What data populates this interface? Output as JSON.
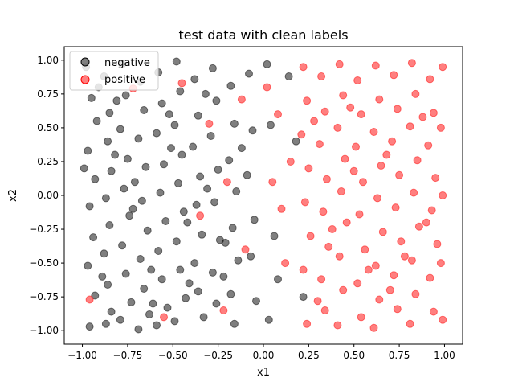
{
  "chart_data": {
    "type": "scatter",
    "title": "test data with clean labels",
    "xlabel": "x1",
    "ylabel": "x2",
    "xlim": [
      -1.1,
      1.1
    ],
    "ylim": [
      -1.1,
      1.1
    ],
    "xticks": [
      -1.0,
      -0.75,
      -0.5,
      -0.25,
      0.0,
      0.25,
      0.5,
      0.75,
      1.0
    ],
    "yticks": [
      -1.0,
      -0.75,
      -0.5,
      -0.25,
      0.0,
      0.25,
      0.5,
      0.75,
      1.0
    ],
    "xtick_labels": [
      "−1.00",
      "−0.75",
      "−0.50",
      "−0.25",
      "0.00",
      "0.25",
      "0.50",
      "0.75",
      "1.00"
    ],
    "ytick_labels": [
      "−1.00",
      "−0.75",
      "−0.50",
      "−0.25",
      "0.00",
      "0.25",
      "0.50",
      "0.75",
      "1.00"
    ],
    "grid": false,
    "legend_position": "top-left",
    "series": [
      {
        "name": "negative",
        "color": "#000000",
        "points": [
          [
            -0.98,
            0.95
          ],
          [
            -0.95,
            0.72
          ],
          [
            -0.92,
            0.55
          ],
          [
            -0.97,
            0.33
          ],
          [
            -0.93,
            0.12
          ],
          [
            -0.96,
            -0.08
          ],
          [
            -0.94,
            -0.31
          ],
          [
            -0.97,
            -0.52
          ],
          [
            -0.93,
            -0.74
          ],
          [
            -0.96,
            -0.97
          ],
          [
            -0.88,
            0.88
          ],
          [
            -0.85,
            0.61
          ],
          [
            -0.86,
            0.4
          ],
          [
            -0.84,
            0.18
          ],
          [
            -0.87,
            -0.02
          ],
          [
            -0.85,
            -0.22
          ],
          [
            -0.88,
            -0.43
          ],
          [
            -0.86,
            -0.66
          ],
          [
            -0.84,
            -0.86
          ],
          [
            -0.87,
            -0.95
          ],
          [
            -0.78,
            0.97
          ],
          [
            -0.76,
            0.74
          ],
          [
            -0.79,
            0.49
          ],
          [
            -0.75,
            0.27
          ],
          [
            -0.77,
            0.05
          ],
          [
            -0.74,
            -0.15
          ],
          [
            -0.78,
            -0.37
          ],
          [
            -0.76,
            -0.58
          ],
          [
            -0.73,
            -0.79
          ],
          [
            -0.79,
            -0.92
          ],
          [
            -0.68,
            0.84
          ],
          [
            -0.66,
            0.63
          ],
          [
            -0.69,
            0.42
          ],
          [
            -0.65,
            0.21
          ],
          [
            -0.67,
            -0.04
          ],
          [
            -0.64,
            -0.26
          ],
          [
            -0.68,
            -0.47
          ],
          [
            -0.66,
            -0.69
          ],
          [
            -0.63,
            -0.88
          ],
          [
            -0.69,
            -0.99
          ],
          [
            -0.58,
            0.91
          ],
          [
            -0.56,
            0.68
          ],
          [
            -0.59,
            0.46
          ],
          [
            -0.55,
            0.23
          ],
          [
            -0.57,
            0.02
          ],
          [
            -0.54,
            -0.19
          ],
          [
            -0.58,
            -0.41
          ],
          [
            -0.56,
            -0.62
          ],
          [
            -0.53,
            -0.83
          ],
          [
            -0.59,
            -0.96
          ],
          [
            -0.48,
            0.99
          ],
          [
            -0.46,
            0.77
          ],
          [
            -0.49,
            0.52
          ],
          [
            -0.45,
            0.3
          ],
          [
            -0.47,
            0.09
          ],
          [
            -0.44,
            -0.12
          ],
          [
            -0.48,
            -0.34
          ],
          [
            -0.46,
            -0.55
          ],
          [
            -0.43,
            -0.76
          ],
          [
            -0.49,
            -0.93
          ],
          [
            -0.38,
            0.86
          ],
          [
            -0.36,
            0.59
          ],
          [
            -0.39,
            0.36
          ],
          [
            -0.35,
            0.14
          ],
          [
            -0.37,
            -0.07
          ],
          [
            -0.34,
            -0.29
          ],
          [
            -0.38,
            -0.5
          ],
          [
            -0.36,
            -0.71
          ],
          [
            -0.33,
            -0.9
          ],
          [
            -0.28,
            0.94
          ],
          [
            -0.26,
            0.7
          ],
          [
            -0.29,
            0.44
          ],
          [
            -0.25,
            0.19
          ],
          [
            -0.27,
            -0.05
          ],
          [
            -0.24,
            -0.33
          ],
          [
            -0.28,
            -0.57
          ],
          [
            -0.26,
            -0.8
          ],
          [
            -0.18,
            0.81
          ],
          [
            -0.16,
            0.53
          ],
          [
            -0.19,
            0.26
          ],
          [
            -0.15,
            0.03
          ],
          [
            -0.17,
            -0.24
          ],
          [
            -0.14,
            -0.48
          ],
          [
            -0.18,
            -0.73
          ],
          [
            -0.16,
            -0.95
          ],
          [
            -0.08,
            0.9
          ],
          [
            -0.06,
            0.48
          ],
          [
            -0.09,
            0.15
          ],
          [
            -0.05,
            -0.18
          ],
          [
            -0.07,
            -0.45
          ],
          [
            -0.04,
            -0.78
          ],
          [
            0.02,
            0.97
          ],
          [
            0.04,
            0.52
          ],
          [
            0.06,
            -0.3
          ],
          [
            0.08,
            -0.62
          ],
          [
            0.03,
            -0.92
          ],
          [
            0.14,
            0.88
          ],
          [
            0.18,
            0.4
          ],
          [
            0.22,
            -0.75
          ],
          [
            -0.91,
            0.8
          ],
          [
            -0.82,
            0.3
          ],
          [
            -0.72,
            -0.1
          ],
          [
            -0.62,
            -0.55
          ],
          [
            -0.52,
            0.6
          ],
          [
            -0.42,
            -0.2
          ],
          [
            -0.32,
            0.75
          ],
          [
            -0.22,
            -0.6
          ],
          [
            -0.12,
            0.35
          ],
          [
            -0.99,
            0.2
          ],
          [
            -0.89,
            -0.6
          ],
          [
            -0.81,
            0.7
          ],
          [
            -0.71,
            0.1
          ],
          [
            -0.61,
            -0.8
          ],
          [
            -0.51,
            0.35
          ],
          [
            -0.41,
            -0.65
          ],
          [
            -0.31,
            0.05
          ],
          [
            -0.21,
            -0.35
          ]
        ]
      },
      {
        "name": "positive",
        "color": "#ff0000",
        "points": [
          [
            -0.96,
            -0.77
          ],
          [
            -0.72,
            0.79
          ],
          [
            -0.55,
            -0.9
          ],
          [
            -0.45,
            0.83
          ],
          [
            -0.35,
            -0.15
          ],
          [
            -0.3,
            0.53
          ],
          [
            -0.22,
            -0.85
          ],
          [
            -0.2,
            0.1
          ],
          [
            -0.12,
            0.71
          ],
          [
            -0.1,
            -0.4
          ],
          [
            0.02,
            0.8
          ],
          [
            0.05,
            0.1
          ],
          [
            0.08,
            0.6
          ],
          [
            0.1,
            -0.1
          ],
          [
            0.12,
            -0.5
          ],
          [
            0.15,
            0.25
          ],
          [
            0.22,
            0.95
          ],
          [
            0.24,
            0.7
          ],
          [
            0.21,
            0.45
          ],
          [
            0.25,
            0.2
          ],
          [
            0.23,
            -0.05
          ],
          [
            0.26,
            -0.3
          ],
          [
            0.22,
            -0.55
          ],
          [
            0.24,
            -0.95
          ],
          [
            0.32,
            0.88
          ],
          [
            0.34,
            0.62
          ],
          [
            0.31,
            0.38
          ],
          [
            0.35,
            0.12
          ],
          [
            0.33,
            -0.12
          ],
          [
            0.36,
            -0.38
          ],
          [
            0.32,
            -0.62
          ],
          [
            0.34,
            -0.85
          ],
          [
            0.42,
            0.97
          ],
          [
            0.44,
            0.74
          ],
          [
            0.41,
            0.5
          ],
          [
            0.45,
            0.27
          ],
          [
            0.43,
            0.03
          ],
          [
            0.46,
            -0.2
          ],
          [
            0.42,
            -0.45
          ],
          [
            0.44,
            -0.7
          ],
          [
            0.41,
            -0.96
          ],
          [
            0.52,
            0.85
          ],
          [
            0.54,
            0.6
          ],
          [
            0.51,
            0.36
          ],
          [
            0.55,
            0.1
          ],
          [
            0.53,
            -0.14
          ],
          [
            0.56,
            -0.4
          ],
          [
            0.52,
            -0.65
          ],
          [
            0.54,
            -0.9
          ],
          [
            0.62,
            0.96
          ],
          [
            0.64,
            0.71
          ],
          [
            0.61,
            0.47
          ],
          [
            0.65,
            0.22
          ],
          [
            0.63,
            -0.02
          ],
          [
            0.66,
            -0.27
          ],
          [
            0.62,
            -0.52
          ],
          [
            0.64,
            -0.77
          ],
          [
            0.61,
            -0.98
          ],
          [
            0.72,
            0.89
          ],
          [
            0.74,
            0.64
          ],
          [
            0.71,
            0.4
          ],
          [
            0.75,
            0.15
          ],
          [
            0.73,
            -0.09
          ],
          [
            0.76,
            -0.34
          ],
          [
            0.72,
            -0.59
          ],
          [
            0.74,
            -0.84
          ],
          [
            0.82,
            0.98
          ],
          [
            0.84,
            0.75
          ],
          [
            0.81,
            0.51
          ],
          [
            0.85,
            0.26
          ],
          [
            0.83,
            0.02
          ],
          [
            0.86,
            -0.23
          ],
          [
            0.82,
            -0.48
          ],
          [
            0.84,
            -0.73
          ],
          [
            0.81,
            -0.95
          ],
          [
            0.92,
            0.86
          ],
          [
            0.94,
            0.61
          ],
          [
            0.91,
            0.37
          ],
          [
            0.95,
            0.13
          ],
          [
            0.93,
            -0.11
          ],
          [
            0.96,
            -0.36
          ],
          [
            0.92,
            -0.61
          ],
          [
            0.94,
            -0.86
          ],
          [
            0.99,
            0.95
          ],
          [
            0.98,
            0.5
          ],
          [
            0.99,
            0.0
          ],
          [
            0.98,
            -0.5
          ],
          [
            0.99,
            -0.92
          ],
          [
            0.28,
            0.55
          ],
          [
            0.38,
            -0.25
          ],
          [
            0.48,
            0.65
          ],
          [
            0.58,
            -0.55
          ],
          [
            0.68,
            0.3
          ],
          [
            0.78,
            -0.45
          ],
          [
            0.88,
            0.58
          ],
          [
            0.3,
            -0.78
          ],
          [
            0.5,
            0.18
          ],
          [
            0.7,
            -0.7
          ],
          [
            0.9,
            -0.2
          ]
        ]
      }
    ]
  }
}
